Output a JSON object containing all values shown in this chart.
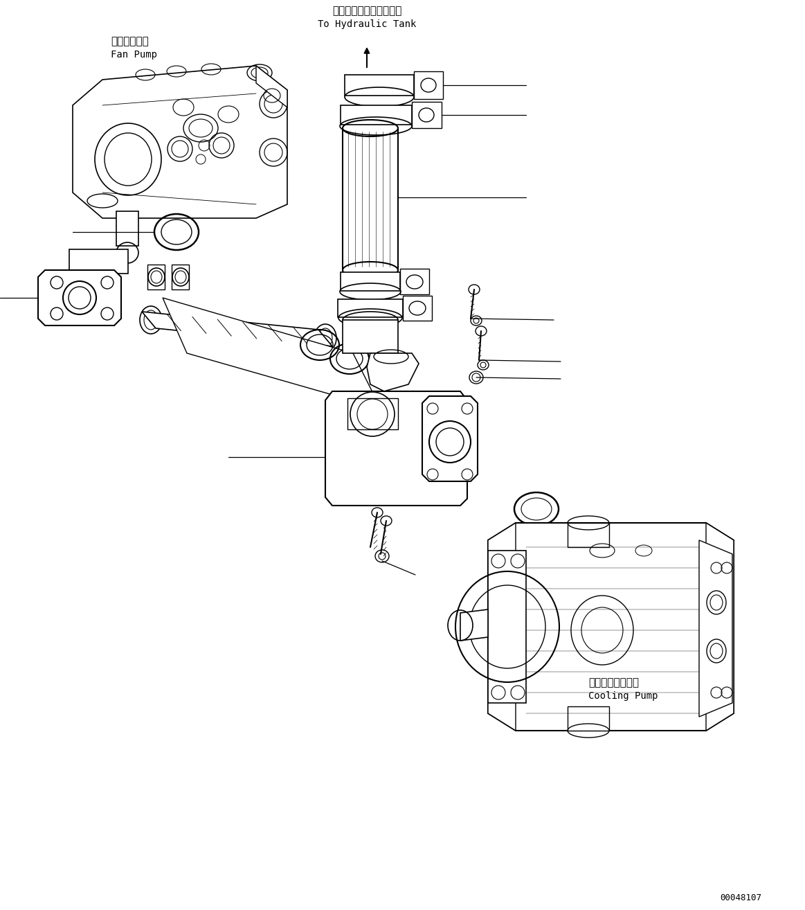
{
  "background_color": "#ffffff",
  "line_color": "#000000",
  "fig_width": 11.63,
  "fig_height": 13.14,
  "label_fan_pump_jp": "ファンポンプ",
  "label_fan_pump_en": "Fan Pump",
  "label_hydraulic_jp": "ハイドロリックタンクへ",
  "label_hydraulic_en": "To Hydraulic Tank",
  "label_cooling_jp": "クーリングポンプ",
  "label_cooling_en": "Cooling Pump",
  "part_number": "00048107"
}
